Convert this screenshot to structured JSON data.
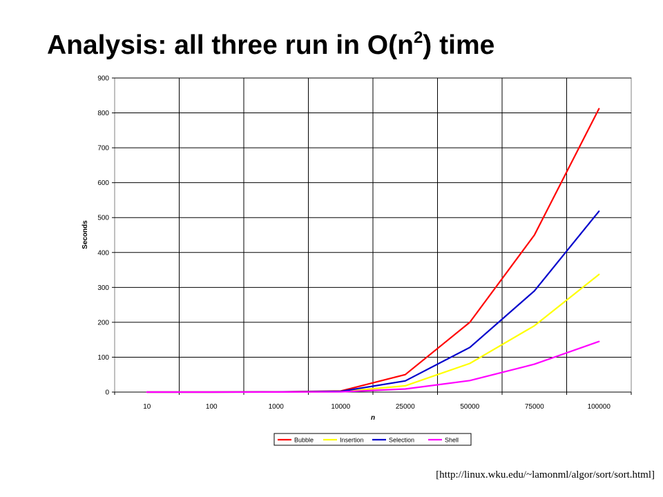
{
  "slide": {
    "title_prefix": "Analysis: all three run in O(n",
    "title_exponent": "2",
    "title_suffix": ") time",
    "source": "[http://linux.wku.edu/~lamonml/algor/sort/sort.html]"
  },
  "chart_data": {
    "type": "line",
    "categories": [
      "10",
      "100",
      "1000",
      "10000",
      "25000",
      "50000",
      "75000",
      "100000"
    ],
    "xlabel": "n",
    "ylabel": "Seconds",
    "ylim": [
      0,
      900
    ],
    "yticks": [
      0,
      100,
      200,
      300,
      400,
      500,
      600,
      700,
      800,
      900
    ],
    "grid": true,
    "legend_position": "bottom",
    "series": [
      {
        "name": "Bubble",
        "color": "#ff0000",
        "values": [
          0,
          0,
          0.5,
          3,
          50,
          200,
          450,
          812
        ]
      },
      {
        "name": "Insertion",
        "color": "#ffff00",
        "values": [
          0,
          0,
          0.2,
          1,
          18,
          82,
          190,
          337
        ]
      },
      {
        "name": "Selection",
        "color": "#0000cc",
        "values": [
          0,
          0,
          0.3,
          2,
          32,
          128,
          290,
          518
        ]
      },
      {
        "name": "Shell",
        "color": "#ff00ff",
        "values": [
          0,
          0,
          0.1,
          0.5,
          9,
          33,
          80,
          145
        ]
      }
    ]
  }
}
